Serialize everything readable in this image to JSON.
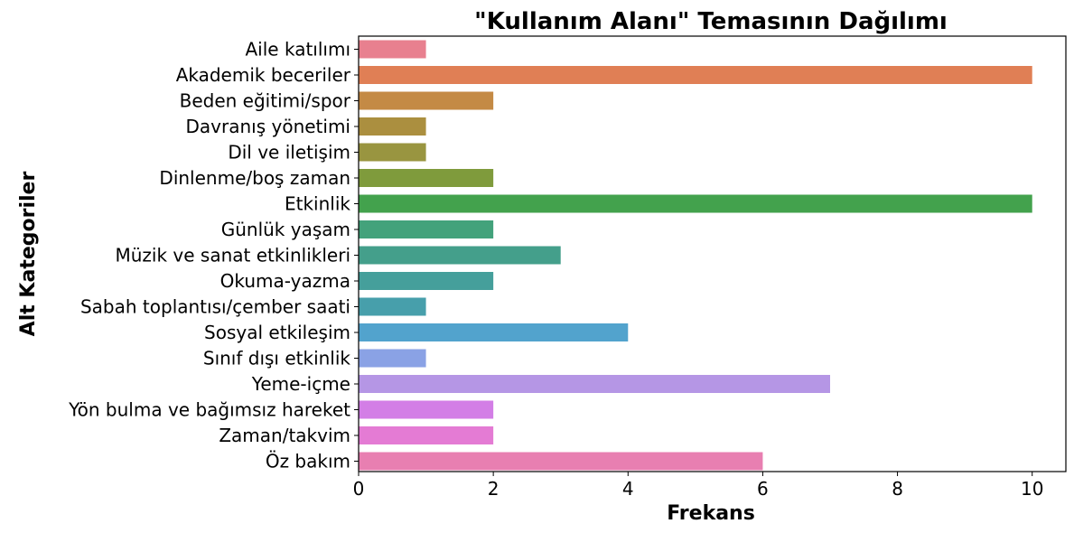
{
  "chart_data": {
    "type": "bar",
    "orientation": "horizontal",
    "title": "\"Kullanım Alanı\" Temasının Dağılımı",
    "xlabel": "Frekans",
    "ylabel": "Alt Kategoriler",
    "xlim": [
      0,
      10.5
    ],
    "xticks": [
      "0",
      "2",
      "4",
      "6",
      "8",
      "10"
    ],
    "grid": false,
    "categories": [
      "Aile katılımı",
      "Akademik beceriler",
      "Beden eğitimi/spor",
      "Davranış yönetimi",
      "Dil ve iletişim",
      "Dinlenme/boş zaman",
      "Etkinlik",
      "Günlük yaşam",
      "Müzik ve sanat etkinlikleri",
      "Okuma-yazma",
      "Sabah toplantısı/çember saati",
      "Sosyal etkileşim",
      "Sınıf dışı etkinlik",
      "Yeme-içme",
      "Yön bulma ve bağımsız hareket",
      "Zaman/takvim",
      "Öz bakım"
    ],
    "values": [
      1,
      10,
      2,
      1,
      1,
      2,
      10,
      2,
      3,
      2,
      1,
      4,
      1,
      7,
      2,
      2,
      6
    ],
    "colors": [
      "#e8808f",
      "#e07f55",
      "#c48a45",
      "#ab8f3f",
      "#999540",
      "#7f9b3c",
      "#43a24d",
      "#43a27b",
      "#449f8b",
      "#459f9b",
      "#479fab",
      "#52a3cd",
      "#8aa2e5",
      "#b596e5",
      "#d37ee6",
      "#e47bd4",
      "#e87fb1"
    ]
  }
}
